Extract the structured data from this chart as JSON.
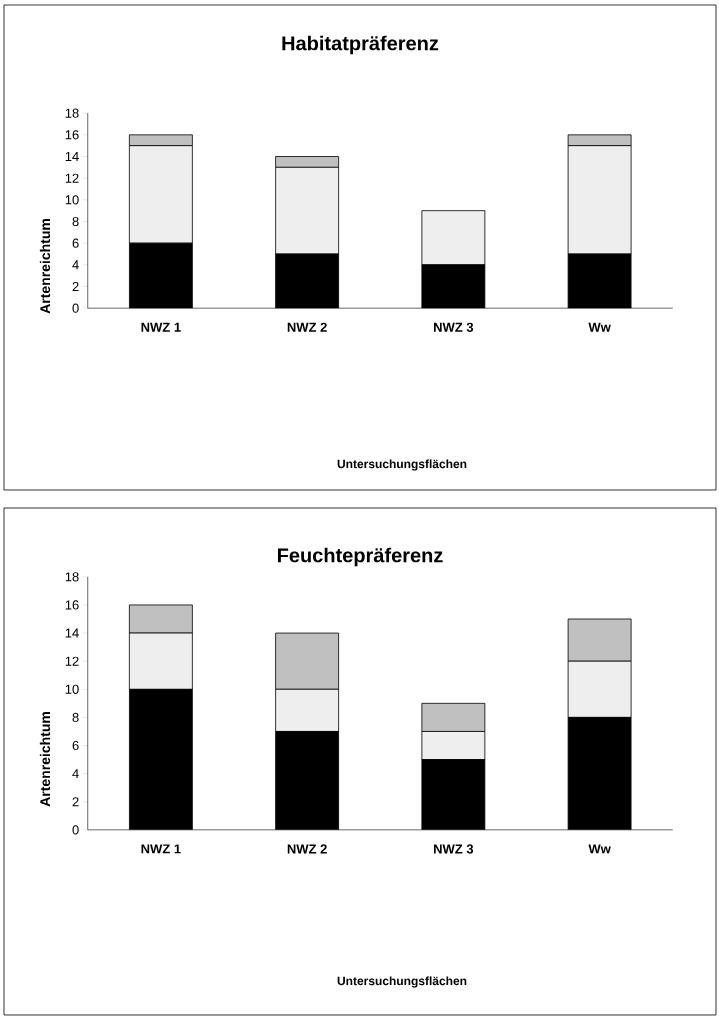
{
  "chart_data": [
    {
      "type": "bar",
      "stacked": true,
      "title": "Habitatpräferenz",
      "xlabel": "Untersuchungsflächen",
      "ylabel": "Artenreichtum",
      "categories": [
        "NWZ 1",
        "NWZ 2",
        "NWZ 3",
        "Ww"
      ],
      "ylim": [
        0,
        18
      ],
      "yticks": [
        0,
        2,
        4,
        6,
        8,
        10,
        12,
        14,
        16,
        18
      ],
      "series": [
        {
          "color": "#000000",
          "values": [
            6,
            5,
            4,
            5
          ]
        },
        {
          "color": "#eeeeee",
          "values": [
            9,
            8,
            5,
            10
          ]
        },
        {
          "color": "#c0c0c0",
          "values": [
            1,
            1,
            0,
            1
          ]
        }
      ]
    },
    {
      "type": "bar",
      "stacked": true,
      "title": "Feuchtepräferenz",
      "xlabel": "Untersuchungsflächen",
      "ylabel": "Artenreichtum",
      "categories": [
        "NWZ 1",
        "NWZ 2",
        "NWZ 3",
        "Ww"
      ],
      "ylim": [
        0,
        18
      ],
      "yticks": [
        0,
        2,
        4,
        6,
        8,
        10,
        12,
        14,
        16,
        18
      ],
      "series": [
        {
          "color": "#000000",
          "values": [
            10,
            7,
            5,
            8
          ]
        },
        {
          "color": "#eeeeee",
          "values": [
            4,
            3,
            2,
            4
          ]
        },
        {
          "color": "#c0c0c0",
          "values": [
            2,
            4,
            2,
            3
          ]
        }
      ]
    }
  ]
}
